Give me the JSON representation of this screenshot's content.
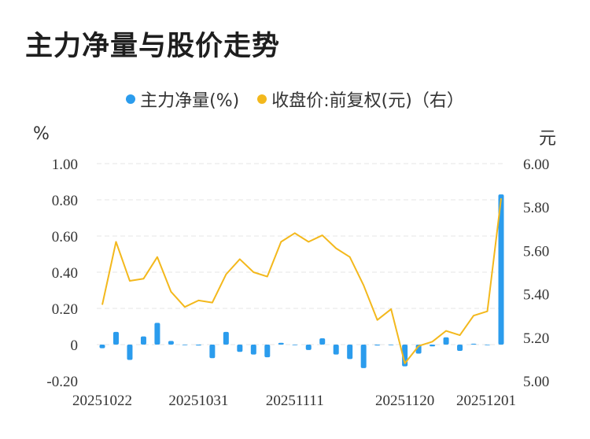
{
  "title": "主力净量与股价走势",
  "legend": [
    {
      "label": "主力净量(%)",
      "color": "#2b9ced"
    },
    {
      "label": "收盘价:前复权(元)（右）",
      "color": "#f3b81c"
    }
  ],
  "left_unit": "%",
  "right_unit": "元",
  "chart_data": {
    "type": "bar+line",
    "x_tick_labels": [
      "20251022",
      "20251031",
      "20251111",
      "20251120",
      "20251201"
    ],
    "y_left": {
      "min": -0.2,
      "max": 1.0,
      "ticks": [
        "-0.20",
        "0",
        "0.20",
        "0.40",
        "0.60",
        "0.80",
        "1.00"
      ]
    },
    "y_right": {
      "min": 5.0,
      "max": 6.0,
      "ticks": [
        "5.00",
        "5.20",
        "5.40",
        "5.60",
        "5.80",
        "6.00"
      ]
    },
    "series": [
      {
        "name": "主力净量(%)",
        "type": "bar",
        "axis": "left",
        "values": [
          -0.02,
          0.07,
          -0.085,
          0.045,
          0.12,
          0.02,
          0.0,
          -0.005,
          -0.075,
          0.07,
          -0.04,
          -0.055,
          -0.07,
          0.01,
          0.0,
          -0.03,
          0.035,
          -0.055,
          -0.08,
          -0.13,
          -0.005,
          0.0,
          -0.12,
          -0.05,
          -0.01,
          0.04,
          -0.035,
          0.005,
          0.0,
          0.83
        ]
      },
      {
        "name": "收盘价:前复权(元)（右）",
        "type": "line",
        "axis": "right",
        "values": [
          5.35,
          5.64,
          5.46,
          5.47,
          5.57,
          5.41,
          5.34,
          5.37,
          5.36,
          5.49,
          5.56,
          5.5,
          5.48,
          5.64,
          5.68,
          5.64,
          5.67,
          5.61,
          5.57,
          5.44,
          5.28,
          5.33,
          5.08,
          5.16,
          5.18,
          5.23,
          5.21,
          5.3,
          5.32,
          5.84
        ]
      }
    ]
  }
}
